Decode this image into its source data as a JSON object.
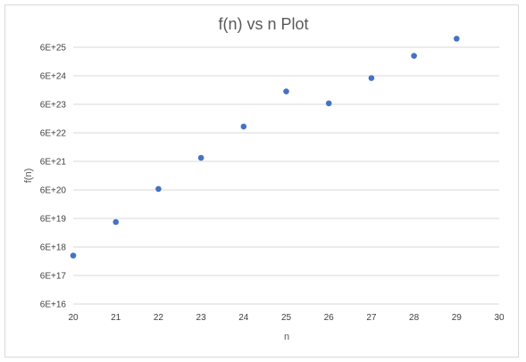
{
  "chart_data": {
    "type": "scatter",
    "title": "f(n) vs n Plot",
    "xlabel": "n",
    "ylabel": "f(n)",
    "xlim": [
      20,
      30
    ],
    "ylim": [
      6e+16,
      6e+25
    ],
    "yscale": "log",
    "x_ticks": [
      20,
      21,
      22,
      23,
      24,
      25,
      26,
      27,
      28,
      29,
      30
    ],
    "x_tick_labels": [
      "20",
      "21",
      "22",
      "23",
      "24",
      "25",
      "26",
      "27",
      "28",
      "29",
      "30"
    ],
    "y_ticks": [
      6e+16,
      6e+17,
      6e+18,
      6e+19,
      6e+20,
      6e+21,
      6e+22,
      6e+23,
      6e+24,
      6e+25
    ],
    "y_tick_labels": [
      "6E+16",
      "6E+17",
      "6E+18",
      "6E+19",
      "6E+20",
      "6E+21",
      "6E+22",
      "6E+23",
      "6E+24",
      "6E+25"
    ],
    "grid": true,
    "legend": "none",
    "marker_color": "#4472C4",
    "gridline_color": "#d9d9d9",
    "series": [
      {
        "x": [
          20,
          21,
          22,
          23,
          24,
          25,
          26,
          27,
          28,
          29
        ],
        "y": [
          3e+18,
          4.5e+19,
          6.5e+20,
          8e+21,
          1e+23,
          1.7e+24,
          6.5e+23,
          5e+24,
          3e+25,
          1.2e+26
        ]
      }
    ]
  }
}
